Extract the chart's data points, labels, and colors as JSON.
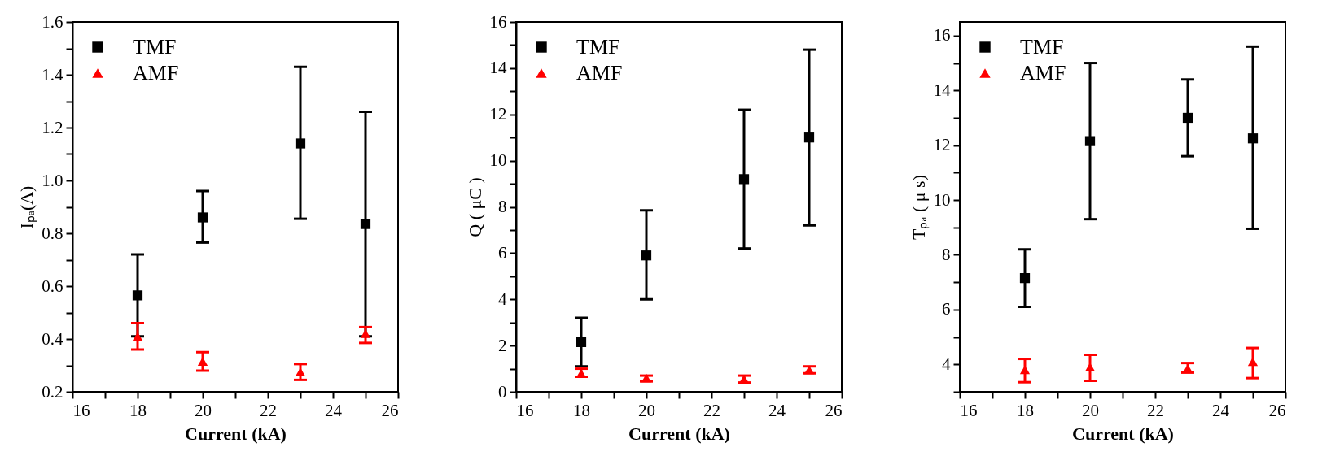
{
  "chart_data": [
    {
      "type": "scatter",
      "xlabel": "Current (kA)",
      "ylabel": "Iₚₐ(A)",
      "x": [
        18,
        20,
        23,
        25
      ],
      "xlim": [
        16,
        26
      ],
      "xticks": [
        16,
        {
          "value": 17,
          "label": null
        },
        18,
        {
          "value": 19,
          "label": null
        },
        20,
        {
          "value": 21,
          "label": null
        },
        22,
        {
          "value": 23,
          "label": null
        },
        24,
        {
          "value": 25,
          "label": null
        },
        26
      ],
      "ylim": [
        0.2,
        1.6
      ],
      "yticks": [
        0.2,
        {
          "value": 0.3,
          "label": null
        },
        0.4,
        {
          "value": 0.5,
          "label": null
        },
        0.6,
        {
          "value": 0.7,
          "label": null
        },
        0.8,
        {
          "value": 0.9,
          "label": null
        },
        {
          "value": 1.0,
          "label": "1.0"
        },
        {
          "value": 1.1,
          "label": null
        },
        1.2,
        {
          "value": 1.3,
          "label": null
        },
        1.4,
        {
          "value": 1.5,
          "label": null
        },
        1.6
      ],
      "grid": false,
      "legend": "top left",
      "series": [
        {
          "name": "TMF",
          "color": "#000000",
          "marker": "square",
          "values": [
            0.565,
            0.86,
            1.14,
            0.835
          ],
          "errors": [
            [
              0.41,
              0.72
            ],
            [
              0.765,
              0.96
            ],
            [
              0.855,
              1.43
            ],
            [
              0.41,
              1.26
            ]
          ]
        },
        {
          "name": "AMF",
          "color": "#ff0000",
          "marker": "triangle",
          "values": [
            0.41,
            0.315,
            0.275,
            0.42
          ],
          "errors": [
            [
              0.36,
              0.46
            ],
            [
              0.28,
              0.35
            ],
            [
              0.245,
              0.305
            ],
            [
              0.385,
              0.445
            ]
          ]
        }
      ]
    },
    {
      "type": "scatter",
      "xlabel": "Current (kA)",
      "ylabel": "Q ( μC )",
      "x": [
        18,
        20,
        23,
        25
      ],
      "xlim": [
        16,
        26
      ],
      "xticks": [
        16,
        {
          "value": 17,
          "label": null
        },
        18,
        {
          "value": 19,
          "label": null
        },
        20,
        {
          "value": 21,
          "label": null
        },
        22,
        {
          "value": 23,
          "label": null
        },
        24,
        {
          "value": 25,
          "label": null
        },
        26
      ],
      "ylim": [
        0,
        16
      ],
      "yticks": [
        0,
        {
          "value": 1,
          "label": null
        },
        2,
        {
          "value": 3,
          "label": null
        },
        4,
        {
          "value": 5,
          "label": null
        },
        6,
        {
          "value": 7,
          "label": null
        },
        8,
        {
          "value": 9,
          "label": null
        },
        10,
        {
          "value": 11,
          "label": null
        },
        12,
        {
          "value": 13,
          "label": null
        },
        14,
        {
          "value": 15,
          "label": null
        },
        16
      ],
      "grid": false,
      "legend": "top left",
      "series": [
        {
          "name": "TMF",
          "color": "#000000",
          "marker": "square",
          "values": [
            2.15,
            5.9,
            9.2,
            11.0
          ],
          "errors": [
            [
              1.1,
              3.2
            ],
            [
              4.0,
              7.85
            ],
            [
              6.2,
              12.2
            ],
            [
              7.2,
              14.8
            ]
          ]
        },
        {
          "name": "AMF",
          "color": "#ff0000",
          "marker": "triangle",
          "values": [
            0.8,
            0.6,
            0.55,
            0.95
          ],
          "errors": [
            [
              0.65,
              1.0
            ],
            [
              0.45,
              0.7
            ],
            [
              0.4,
              0.7
            ],
            [
              0.8,
              1.1
            ]
          ]
        }
      ]
    },
    {
      "type": "scatter",
      "xlabel": "Current (kA)",
      "ylabel": "Tₚₐ ( μ s)",
      "x": [
        18,
        20,
        23,
        25
      ],
      "xlim": [
        16,
        26
      ],
      "xticks": [
        16,
        {
          "value": 17,
          "label": null
        },
        18,
        {
          "value": 19,
          "label": null
        },
        20,
        {
          "value": 21,
          "label": null
        },
        22,
        {
          "value": 23,
          "label": null
        },
        24,
        {
          "value": 25,
          "label": null
        },
        26
      ],
      "ylim": [
        3,
        16.5
      ],
      "yticks": [
        {
          "value": 3,
          "label": null
        },
        4,
        {
          "value": 5,
          "label": null
        },
        6,
        {
          "value": 7,
          "label": null
        },
        8,
        {
          "value": 9,
          "label": null
        },
        10,
        {
          "value": 11,
          "label": null
        },
        12,
        {
          "value": 13,
          "label": null
        },
        14,
        {
          "value": 15,
          "label": null
        },
        16
      ],
      "grid": false,
      "legend": "top left",
      "series": [
        {
          "name": "TMF",
          "color": "#000000",
          "marker": "square",
          "values": [
            7.15,
            12.15,
            13.0,
            12.25
          ],
          "errors": [
            [
              6.1,
              8.2
            ],
            [
              9.3,
              15.0
            ],
            [
              11.6,
              14.4
            ],
            [
              8.95,
              15.6
            ]
          ]
        },
        {
          "name": "AMF",
          "color": "#ff0000",
          "marker": "triangle",
          "values": [
            3.8,
            3.9,
            3.85,
            4.1
          ],
          "errors": [
            [
              3.35,
              4.2
            ],
            [
              3.4,
              4.35
            ],
            [
              3.7,
              4.05
            ],
            [
              3.5,
              4.6
            ]
          ]
        }
      ]
    }
  ]
}
